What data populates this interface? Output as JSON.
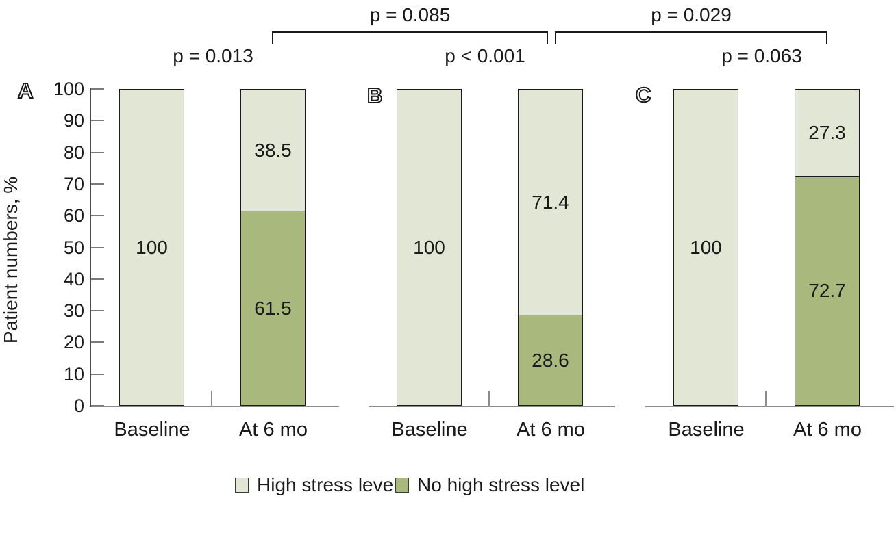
{
  "chart_data": {
    "type": "bar",
    "stacked": true,
    "units": "percent",
    "title": "",
    "ylabel": "Patient numbers, %",
    "ylim": [
      0,
      100
    ],
    "y_ticks": [
      0,
      10,
      20,
      30,
      40,
      50,
      60,
      70,
      80,
      90,
      100
    ],
    "grid": false,
    "legend_position": "bottom",
    "legend": [
      {
        "name": "High stress level",
        "color": "#e2e6d4"
      },
      {
        "name": "No high stress level",
        "color": "#a9b87c"
      }
    ],
    "panels": [
      {
        "label": "A",
        "categories": [
          "Baseline",
          "At 6 mo"
        ],
        "series": [
          {
            "name": "High stress level",
            "values": [
              100,
              38.5
            ]
          },
          {
            "name": "No high stress level",
            "values": [
              0,
              61.5
            ]
          }
        ],
        "p_value": "p = 0.013"
      },
      {
        "label": "B",
        "categories": [
          "Baseline",
          "At 6 mo"
        ],
        "series": [
          {
            "name": "High stress level",
            "values": [
              100,
              71.4
            ]
          },
          {
            "name": "No high stress level",
            "values": [
              0,
              28.6
            ]
          }
        ],
        "p_value": "p < 0.001"
      },
      {
        "label": "C",
        "categories": [
          "Baseline",
          "At 6 mo"
        ],
        "series": [
          {
            "name": "High stress level",
            "values": [
              100,
              27.3
            ]
          },
          {
            "name": "No high stress level",
            "values": [
              0,
              72.7
            ]
          }
        ],
        "p_value": "p = 0.063"
      }
    ],
    "between_panel_comparisons": [
      {
        "label": "p = 0.085",
        "from": "Panel A, At 6 mo",
        "to": "Panel B, At 6 mo"
      },
      {
        "label": "p = 0.029",
        "from": "Panel B, At 6 mo",
        "to": "Panel C, At 6 mo"
      }
    ]
  }
}
